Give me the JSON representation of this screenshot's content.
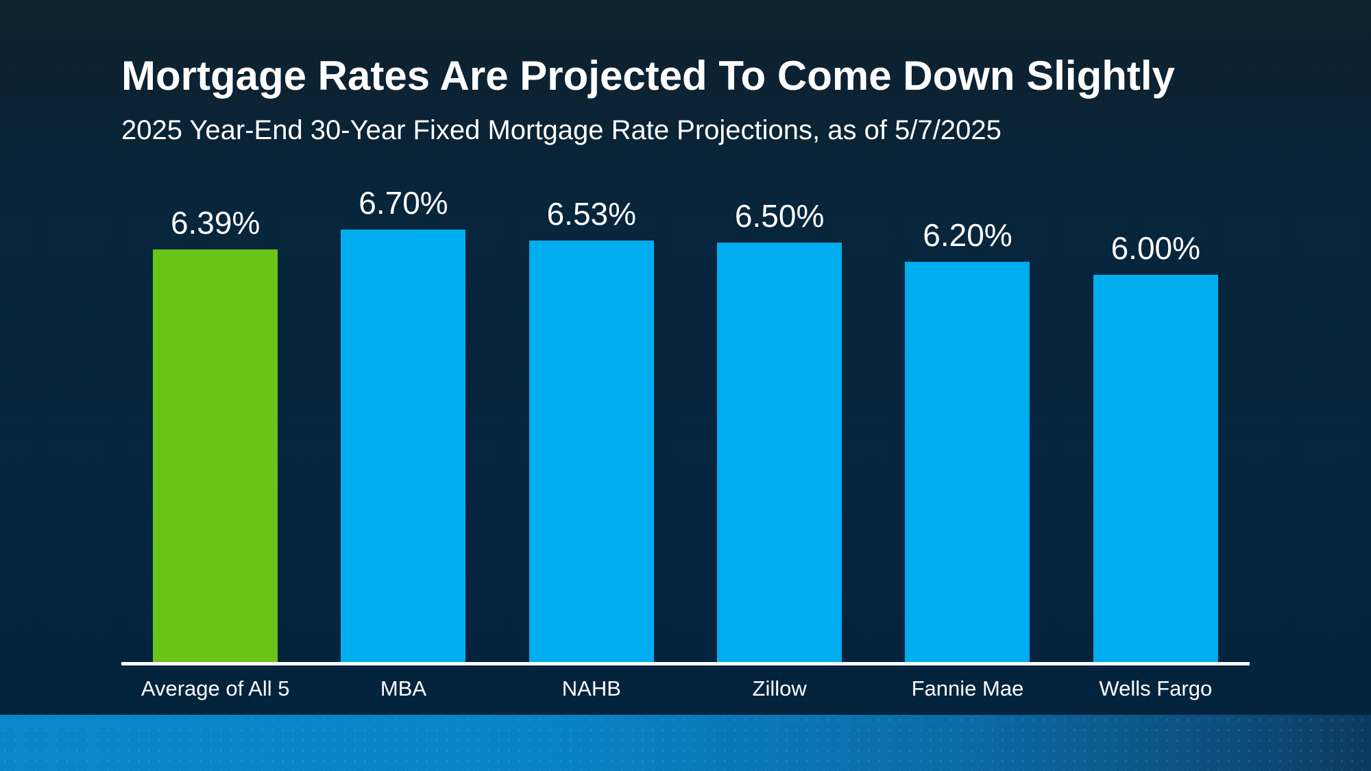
{
  "slide": {
    "title": "Mortgage Rates Are Projected To Come Down Slightly",
    "subtitle": "2025 Year-End 30-Year Fixed Mortgage Rate Projections, as of 5/7/2025"
  },
  "chart_data": {
    "type": "bar",
    "title": "Mortgage Rates Are Projected To Come Down Slightly",
    "subtitle": "2025 Year-End 30-Year Fixed Mortgage Rate Projections, as of 5/7/2025",
    "categories": [
      "Average of All 5",
      "MBA",
      "NAHB",
      "Zillow",
      "Fannie Mae",
      "Wells Fargo"
    ],
    "values": [
      6.39,
      6.7,
      6.53,
      6.5,
      6.2,
      6.0
    ],
    "value_labels": [
      "6.39%",
      "6.70%",
      "6.53%",
      "6.50%",
      "6.20%",
      "6.00%"
    ],
    "bar_colors": [
      "#68c417",
      "#00aeef",
      "#00aeef",
      "#00aeef",
      "#00aeef",
      "#00aeef"
    ],
    "xlabel": "",
    "ylabel": "",
    "ylim": [
      0,
      6.7
    ],
    "grid": false,
    "legend": false,
    "baseline_color": "#ffffff"
  },
  "colors": {
    "highlight_green": "#68c417",
    "series_blue": "#00aeef",
    "background_navy": "#07253b",
    "band_blue": "#0a86ca",
    "text": "#ffffff"
  }
}
